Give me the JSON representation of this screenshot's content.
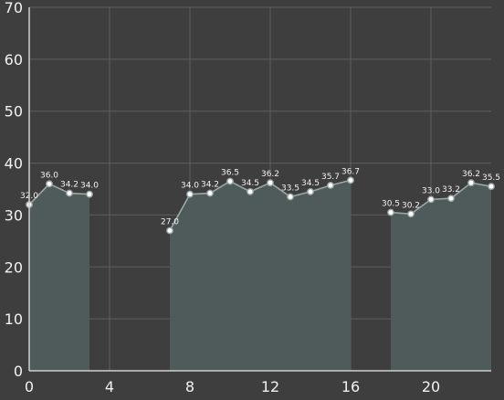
{
  "chart_data": {
    "type": "area",
    "xlim": [
      0,
      23
    ],
    "ylim": [
      0,
      70
    ],
    "x_ticks": [
      0,
      4,
      8,
      12,
      16,
      20
    ],
    "y_ticks": [
      0,
      10,
      20,
      30,
      40,
      50,
      60,
      70
    ],
    "grid": true,
    "value_labels": true,
    "colors": {
      "background": "#3e3e3e",
      "grid": "#5f5f5f",
      "axis": "#cfcfcf",
      "fill": "#4e5b5a",
      "line": "#9aa7a6",
      "point": "#ffffff"
    },
    "segments": [
      {
        "points": [
          [
            0,
            32.0
          ],
          [
            1,
            36.0
          ],
          [
            2,
            34.2
          ],
          [
            3,
            34.0
          ]
        ]
      },
      {
        "points": [
          [
            7,
            27.0
          ],
          [
            8,
            34.0
          ],
          [
            9,
            34.2
          ],
          [
            10,
            36.5
          ],
          [
            11,
            34.5
          ],
          [
            12,
            36.2
          ],
          [
            13,
            33.5
          ],
          [
            14,
            34.5
          ],
          [
            15,
            35.7
          ],
          [
            16,
            36.7
          ]
        ]
      },
      {
        "points": [
          [
            18,
            30.5
          ],
          [
            19,
            30.2
          ],
          [
            20,
            33.0
          ],
          [
            21,
            33.2
          ],
          [
            22,
            36.2
          ],
          [
            23,
            35.5
          ]
        ]
      }
    ]
  }
}
